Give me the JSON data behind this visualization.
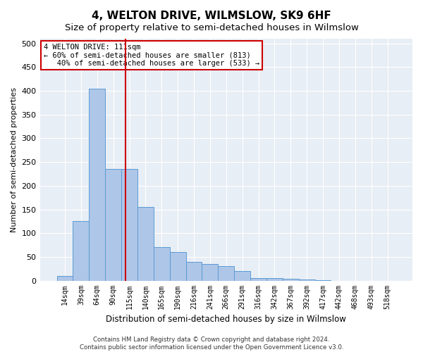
{
  "title": "4, WELTON DRIVE, WILMSLOW, SK9 6HF",
  "subtitle": "Size of property relative to semi-detached houses in Wilmslow",
  "xlabel": "Distribution of semi-detached houses by size in Wilmslow",
  "ylabel": "Number of semi-detached properties",
  "footer_line1": "Contains HM Land Registry data © Crown copyright and database right 2024.",
  "footer_line2": "Contains public sector information licensed under the Open Government Licence v3.0.",
  "bin_labels": [
    "14sqm",
    "39sqm",
    "64sqm",
    "90sqm",
    "115sqm",
    "140sqm",
    "165sqm",
    "190sqm",
    "216sqm",
    "241sqm",
    "266sqm",
    "291sqm",
    "316sqm",
    "342sqm",
    "367sqm",
    "392sqm",
    "417sqm",
    "442sqm",
    "468sqm",
    "493sqm",
    "518sqm"
  ],
  "bar_values": [
    10,
    125,
    405,
    235,
    235,
    155,
    70,
    60,
    40,
    35,
    30,
    20,
    5,
    5,
    4,
    2,
    1,
    0,
    0,
    0,
    0
  ],
  "bar_color": "#aec6e8",
  "bar_edge_color": "#5b9bd5",
  "vline_x": 3.75,
  "vline_color": "#cc0000",
  "annotation_text": "4 WELTON DRIVE: 111sqm\n← 60% of semi-detached houses are smaller (813)\n   40% of semi-detached houses are larger (533) →",
  "annotation_box_color": "#ffffff",
  "annotation_box_edge": "#cc0000",
  "ylim": [
    0,
    510
  ],
  "yticks": [
    0,
    50,
    100,
    150,
    200,
    250,
    300,
    350,
    400,
    450,
    500
  ],
  "bg_color": "#e8eef5",
  "title_fontsize": 11,
  "subtitle_fontsize": 9.5
}
